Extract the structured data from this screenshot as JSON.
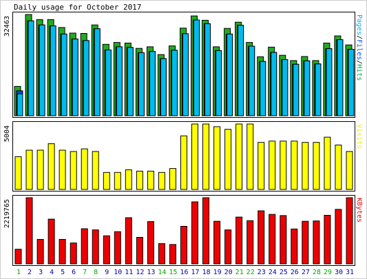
{
  "chart_data": {
    "type": "bar",
    "title": "Daily usage for October 2017",
    "categories": [
      "1",
      "2",
      "3",
      "4",
      "5",
      "6",
      "7",
      "8",
      "9",
      "10",
      "11",
      "12",
      "13",
      "14",
      "15",
      "16",
      "17",
      "18",
      "19",
      "20",
      "21",
      "22",
      "23",
      "24",
      "25",
      "26",
      "27",
      "28",
      "29",
      "30",
      "31"
    ],
    "weekend_days": [
      "1",
      "7",
      "8",
      "14",
      "15",
      "21",
      "22",
      "28",
      "29"
    ],
    "panels": [
      {
        "id": "pages-files-hits",
        "ymax_label": "32463",
        "ylim": [
          0,
          32463
        ],
        "label_parts": [
          {
            "text": "Pages",
            "color": "#00aaff"
          },
          {
            "text": "/",
            "color": "#000000"
          },
          {
            "text": "Files",
            "color": "#0055ff"
          },
          {
            "text": "/",
            "color": "#000000"
          },
          {
            "text": "Hits",
            "color": "#00aa44"
          }
        ],
        "series": [
          {
            "name": "Hits",
            "color": "#22aa22",
            "values": [
              9400,
              32463,
              30800,
              30800,
              28300,
              26500,
              26400,
              29100,
              22900,
              23500,
              23300,
              21600,
              22100,
              19600,
              22400,
              28100,
              32000,
              30600,
              22100,
              28000,
              30000,
              23500,
              18900,
              22000,
              19400,
              17700,
              19000,
              17700,
              23300,
              25600,
              22700
            ]
          },
          {
            "name": "Files",
            "color": "#0044ee",
            "values": [
              8000,
              30400,
              29100,
              28800,
              26200,
              24600,
              24100,
              27900,
              21100,
              22100,
              21900,
              20200,
              20600,
              18300,
              21000,
              26300,
              30700,
              29500,
              20900,
              26200,
              29000,
              22300,
              17400,
              20300,
              18000,
              16500,
              17600,
              16600,
              21500,
              24400,
              21300
            ]
          },
          {
            "name": "Pages",
            "color": "#00bbee",
            "values": [
              7000,
              30400,
              29100,
              28800,
              26200,
              24600,
              24100,
              27900,
              21100,
              22100,
              21900,
              20200,
              20600,
              18300,
              21000,
              26300,
              30700,
              29500,
              20900,
              26200,
              29000,
              22300,
              17400,
              20300,
              18000,
              16500,
              17600,
              16600,
              21500,
              24400,
              21300
            ]
          }
        ]
      },
      {
        "id": "visits",
        "ymax_label": "5004",
        "ylim": [
          0,
          5004
        ],
        "label_parts": [
          {
            "text": "Visits",
            "color": "#eeee00"
          }
        ],
        "series": [
          {
            "name": "Visits",
            "color": "#ffff00",
            "values": [
              2500,
              3000,
              3000,
              3500,
              3000,
              2900,
              3100,
              2900,
              1300,
              1300,
              1500,
              1400,
              1400,
              1300,
              1600,
              4100,
              5004,
              5004,
              4800,
              4600,
              5004,
              5004,
              3600,
              3700,
              3700,
              3700,
              3600,
              3600,
              4000,
              3400,
              2900
            ]
          }
        ]
      },
      {
        "id": "kbytes",
        "ymax_label": "2219765",
        "ylim": [
          0,
          2219765
        ],
        "label_parts": [
          {
            "text": "KBytes",
            "color": "#ee0000"
          }
        ],
        "series": [
          {
            "name": "KBytes",
            "color": "#ee0000",
            "values": [
              490000,
              2219765,
              820000,
              1500000,
              820000,
              700000,
              1180000,
              1140000,
              940000,
              1080000,
              1550000,
              890000,
              1420000,
              680000,
              650000,
              1260000,
              2080000,
              2219765,
              1430000,
              1140000,
              1570000,
              1450000,
              1780000,
              1660000,
              1620000,
              1170000,
              1430000,
              1440000,
              1630000,
              1830000,
              2219765
            ]
          }
        ]
      }
    ]
  },
  "colors": {
    "weekday_label": "#0000aa",
    "weekend_label": "#00aa00",
    "frame": "#000000",
    "panel_bg": "#ffffff",
    "outer_bg": "#ffffff"
  }
}
